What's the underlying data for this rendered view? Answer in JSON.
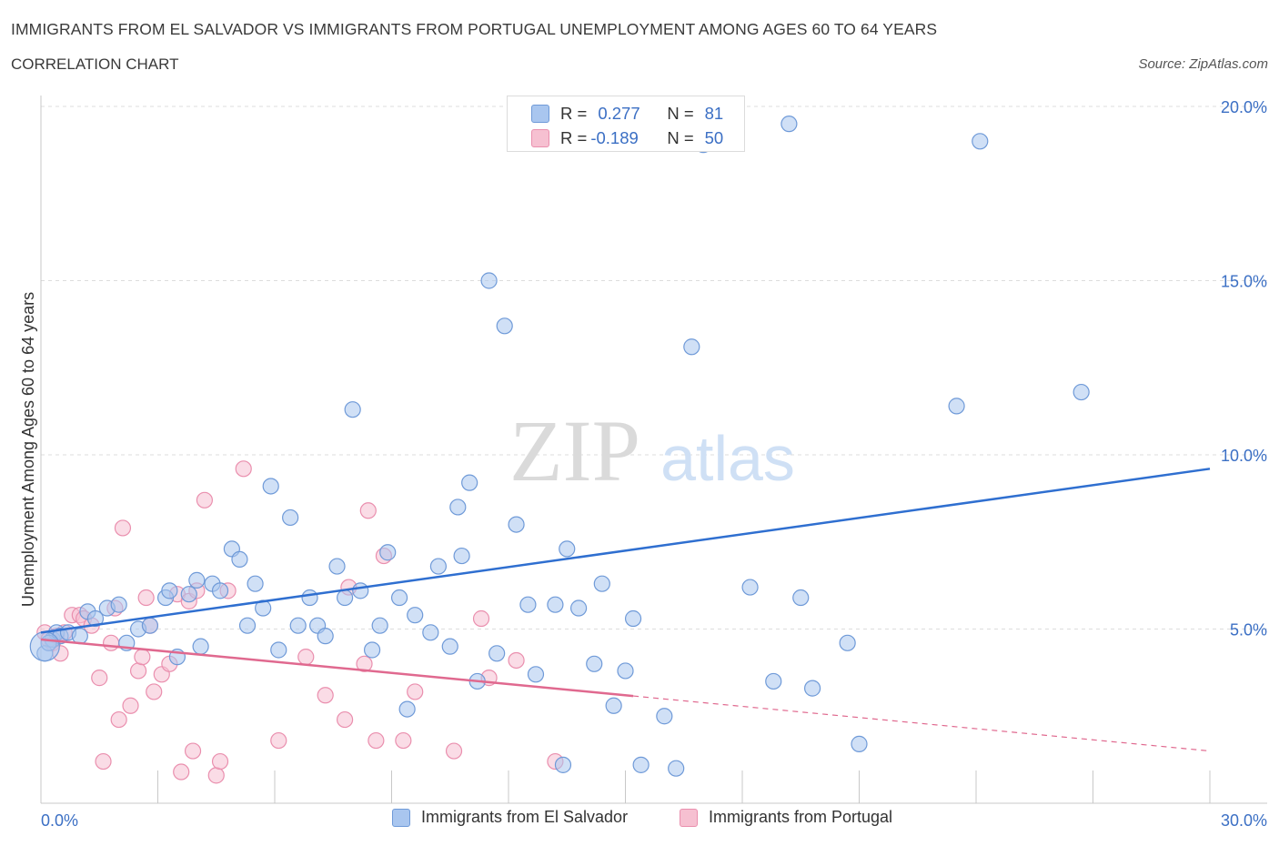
{
  "header": {
    "title": "IMMIGRANTS FROM EL SALVADOR VS IMMIGRANTS FROM PORTUGAL UNEMPLOYMENT AMONG AGES 60 TO 64 YEARS",
    "subtitle": "CORRELATION CHART",
    "source": "Source: ZipAtlas.com"
  },
  "watermark": {
    "zip": "ZIP",
    "atlas": "atlas"
  },
  "stats": {
    "el_salvador": {
      "r_label": "R =",
      "r_value": "0.277",
      "n_label": "N =",
      "n_value": "81"
    },
    "portugal": {
      "r_label": "R =",
      "r_value": "-0.189",
      "n_label": "N =",
      "n_value": "50"
    }
  },
  "legend": {
    "el_salvador": "Immigrants from El Salvador",
    "portugal": "Immigrants from Portugal"
  },
  "colors": {
    "blue_fill": "#a9c6ef",
    "blue_stroke": "#6f9ad8",
    "blue_line": "#2f6fd0",
    "pink_fill": "#f6c0d1",
    "pink_stroke": "#ea8fae",
    "pink_line": "#e0698f",
    "axis_text": "#3b6fc4",
    "grid": "#dddddd"
  },
  "chart_data": {
    "type": "scatter",
    "title": "IMMIGRANTS FROM EL SALVADOR VS IMMIGRANTS FROM PORTUGAL UNEMPLOYMENT AMONG AGES 60 TO 64 YEARS",
    "xlabel": "",
    "ylabel": "Unemployment Among Ages 60 to 64 years",
    "xlim": [
      0,
      30
    ],
    "ylim": [
      0,
      20
    ],
    "x_tick_labels": [
      "0.0%",
      "30.0%"
    ],
    "y_ticks": [
      5,
      10,
      15,
      20
    ],
    "y_tick_labels": [
      "5.0%",
      "10.0%",
      "15.0%",
      "20.0%"
    ],
    "grid": true,
    "legend_position": "bottom",
    "series": [
      {
        "name": "Immigrants from El Salvador",
        "color": "blue",
        "trend": {
          "x": [
            0,
            30
          ],
          "y": [
            4.9,
            9.6
          ],
          "dashed_from": null
        },
        "points": [
          [
            0.1,
            4.3
          ],
          [
            0.3,
            4.7
          ],
          [
            0.4,
            4.9
          ],
          [
            0.5,
            4.8
          ],
          [
            0.7,
            4.9
          ],
          [
            1.0,
            4.8
          ],
          [
            1.2,
            5.5
          ],
          [
            1.4,
            5.3
          ],
          [
            1.7,
            5.6
          ],
          [
            2.0,
            5.7
          ],
          [
            2.2,
            4.6
          ],
          [
            2.5,
            5.0
          ],
          [
            2.8,
            5.1
          ],
          [
            3.2,
            5.9
          ],
          [
            3.3,
            6.1
          ],
          [
            3.5,
            4.2
          ],
          [
            3.8,
            6.0
          ],
          [
            4.0,
            6.4
          ],
          [
            4.1,
            4.5
          ],
          [
            4.4,
            6.3
          ],
          [
            4.6,
            6.1
          ],
          [
            4.9,
            7.3
          ],
          [
            5.1,
            7.0
          ],
          [
            5.3,
            5.1
          ],
          [
            5.5,
            6.3
          ],
          [
            5.7,
            5.6
          ],
          [
            5.9,
            9.1
          ],
          [
            6.1,
            4.4
          ],
          [
            6.4,
            8.2
          ],
          [
            6.6,
            5.1
          ],
          [
            6.9,
            5.9
          ],
          [
            7.1,
            5.1
          ],
          [
            7.3,
            4.8
          ],
          [
            7.6,
            6.8
          ],
          [
            7.8,
            5.9
          ],
          [
            8.0,
            11.3
          ],
          [
            8.2,
            6.1
          ],
          [
            8.5,
            4.4
          ],
          [
            8.7,
            5.1
          ],
          [
            8.9,
            7.2
          ],
          [
            9.2,
            5.9
          ],
          [
            9.4,
            2.7
          ],
          [
            9.6,
            5.4
          ],
          [
            10.0,
            4.9
          ],
          [
            10.2,
            6.8
          ],
          [
            10.5,
            4.5
          ],
          [
            10.7,
            8.5
          ],
          [
            10.8,
            7.1
          ],
          [
            11.0,
            9.2
          ],
          [
            11.2,
            3.5
          ],
          [
            11.5,
            15.0
          ],
          [
            11.7,
            4.3
          ],
          [
            11.9,
            13.7
          ],
          [
            12.2,
            8.0
          ],
          [
            12.5,
            5.7
          ],
          [
            12.7,
            3.7
          ],
          [
            13.2,
            5.7
          ],
          [
            13.4,
            1.1
          ],
          [
            13.5,
            7.3
          ],
          [
            13.8,
            5.6
          ],
          [
            14.2,
            4.0
          ],
          [
            14.4,
            6.3
          ],
          [
            14.7,
            2.8
          ],
          [
            15.0,
            3.8
          ],
          [
            15.2,
            5.3
          ],
          [
            15.4,
            1.1
          ],
          [
            16.0,
            2.5
          ],
          [
            16.3,
            1.0
          ],
          [
            16.7,
            13.1
          ],
          [
            18.2,
            6.2
          ],
          [
            18.8,
            3.5
          ],
          [
            19.2,
            19.5
          ],
          [
            19.5,
            5.9
          ],
          [
            19.8,
            3.3
          ],
          [
            20.7,
            4.6
          ],
          [
            21.0,
            1.7
          ],
          [
            23.5,
            11.4
          ],
          [
            24.1,
            19.0
          ],
          [
            26.7,
            11.8
          ],
          [
            17.0,
            18.9
          ],
          [
            0.2,
            4.6
          ]
        ]
      },
      {
        "name": "Immigrants from Portugal",
        "color": "pink",
        "trend": {
          "x": [
            0,
            30
          ],
          "y": [
            4.7,
            1.5
          ],
          "dashed_from": 15.2
        },
        "points": [
          [
            0.1,
            4.9
          ],
          [
            0.3,
            4.6
          ],
          [
            0.4,
            4.8
          ],
          [
            0.5,
            4.3
          ],
          [
            0.6,
            4.9
          ],
          [
            0.8,
            5.4
          ],
          [
            1.0,
            5.4
          ],
          [
            1.1,
            5.3
          ],
          [
            1.3,
            5.1
          ],
          [
            1.5,
            3.6
          ],
          [
            1.6,
            1.2
          ],
          [
            1.8,
            4.6
          ],
          [
            1.9,
            5.6
          ],
          [
            2.0,
            2.4
          ],
          [
            2.1,
            7.9
          ],
          [
            2.3,
            2.8
          ],
          [
            2.5,
            3.8
          ],
          [
            2.6,
            4.2
          ],
          [
            2.7,
            5.9
          ],
          [
            2.8,
            5.1
          ],
          [
            2.9,
            3.2
          ],
          [
            3.1,
            3.7
          ],
          [
            3.3,
            4.0
          ],
          [
            3.5,
            6.0
          ],
          [
            3.6,
            0.9
          ],
          [
            3.8,
            5.8
          ],
          [
            3.9,
            1.5
          ],
          [
            4.0,
            6.1
          ],
          [
            4.2,
            8.7
          ],
          [
            4.5,
            0.8
          ],
          [
            4.6,
            1.2
          ],
          [
            4.8,
            6.1
          ],
          [
            5.2,
            9.6
          ],
          [
            6.1,
            1.8
          ],
          [
            6.8,
            4.2
          ],
          [
            7.3,
            3.1
          ],
          [
            7.8,
            2.4
          ],
          [
            7.9,
            6.2
          ],
          [
            8.3,
            4.0
          ],
          [
            8.4,
            8.4
          ],
          [
            8.6,
            1.8
          ],
          [
            8.8,
            7.1
          ],
          [
            9.3,
            1.8
          ],
          [
            9.6,
            3.2
          ],
          [
            10.6,
            1.5
          ],
          [
            11.3,
            5.3
          ],
          [
            11.5,
            3.6
          ],
          [
            12.2,
            4.1
          ],
          [
            13.2,
            1.2
          ],
          [
            0.2,
            4.7
          ]
        ]
      }
    ]
  }
}
